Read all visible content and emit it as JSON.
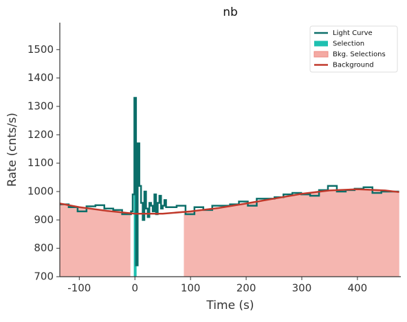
{
  "chart_data": {
    "type": "line",
    "title": "nb",
    "xlabel": "Time (s)",
    "ylabel": "Rate (cnts/s)",
    "xlim": [
      -135,
      478
    ],
    "ylim": [
      700,
      1595
    ],
    "xticks": [
      -100,
      0,
      100,
      200,
      300,
      400
    ],
    "yticks": [
      700,
      800,
      900,
      1000,
      1100,
      1200,
      1300,
      1400,
      1500
    ],
    "legend": "upper right",
    "series": [
      {
        "name": "Light Curve",
        "color": "#0b6e69",
        "bins": [
          -135,
          -119,
          -103,
          -87,
          -71,
          -55,
          -39,
          -23,
          -7,
          -4,
          -1,
          2,
          5,
          8,
          11,
          14,
          17,
          20,
          23,
          26,
          29,
          32,
          35,
          38,
          41,
          44,
          47,
          50,
          53,
          56,
          59,
          75,
          91,
          107,
          123,
          139,
          155,
          171,
          187,
          203,
          219,
          235,
          251,
          267,
          283,
          299,
          315,
          331,
          347,
          363,
          379,
          395,
          411,
          427,
          443,
          459,
          475
        ],
        "values": [
          955,
          945,
          930,
          948,
          952,
          940,
          935,
          920,
          930,
          990,
          1330,
          740,
          1170,
          1020,
          960,
          900,
          1000,
          940,
          910,
          960,
          950,
          930,
          990,
          920,
          960,
          985,
          940,
          950,
          970,
          945,
          945,
          950,
          920,
          945,
          935,
          950,
          950,
          955,
          965,
          950,
          975,
          975,
          980,
          990,
          995,
          990,
          985,
          1005,
          1020,
          1000,
          1005,
          1010,
          1015,
          995,
          1000,
          1000
        ]
      },
      {
        "name": "Selection",
        "color": "#1fc0b0",
        "range": [
          -2,
          3
        ]
      },
      {
        "name": "Bkg. Selections",
        "color": "#f4aaa3",
        "ranges": [
          [
            -135,
            -8
          ],
          [
            88,
            475
          ]
        ]
      },
      {
        "name": "Background",
        "color": "#c0392b",
        "x": [
          -135,
          -100,
          -50,
          0,
          50,
          100,
          150,
          200,
          250,
          300,
          350,
          400,
          450,
          475
        ],
        "values": [
          958,
          945,
          932,
          922,
          922,
          930,
          942,
          958,
          975,
          992,
          1004,
          1008,
          1004,
          998
        ]
      }
    ]
  }
}
